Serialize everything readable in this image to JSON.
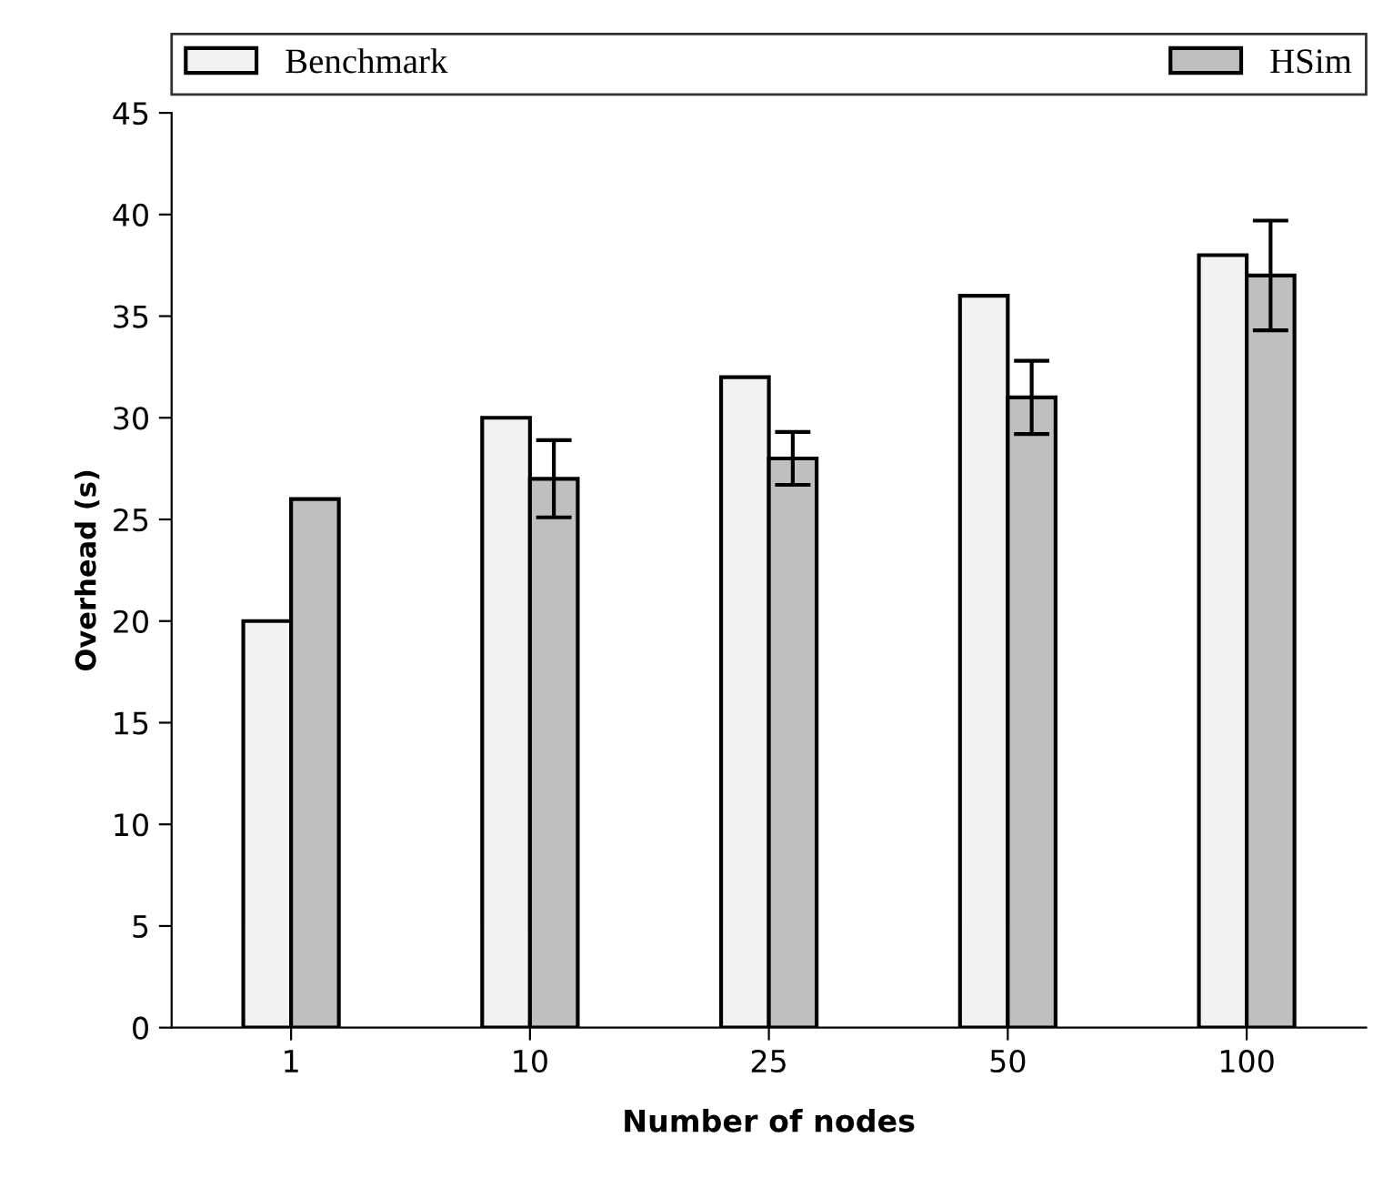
{
  "chart_data": {
    "type": "bar",
    "xlabel": "Number of nodes",
    "ylabel": "Overhead (s)",
    "categories": [
      "1",
      "10",
      "25",
      "50",
      "100"
    ],
    "series": [
      {
        "name": "Benchmark",
        "color": "#f2f2f2",
        "values": [
          20,
          30,
          32,
          36,
          38
        ]
      },
      {
        "name": "HSim",
        "color": "#bfbfbf",
        "values": [
          26,
          27,
          28,
          31,
          37
        ],
        "errors": [
          null,
          1.9,
          1.3,
          1.8,
          2.7
        ]
      }
    ],
    "ylim": [
      0,
      45
    ],
    "yticks": [
      0,
      5,
      10,
      15,
      20,
      25,
      30,
      35,
      40,
      45
    ],
    "grid": false,
    "legend": "top"
  }
}
